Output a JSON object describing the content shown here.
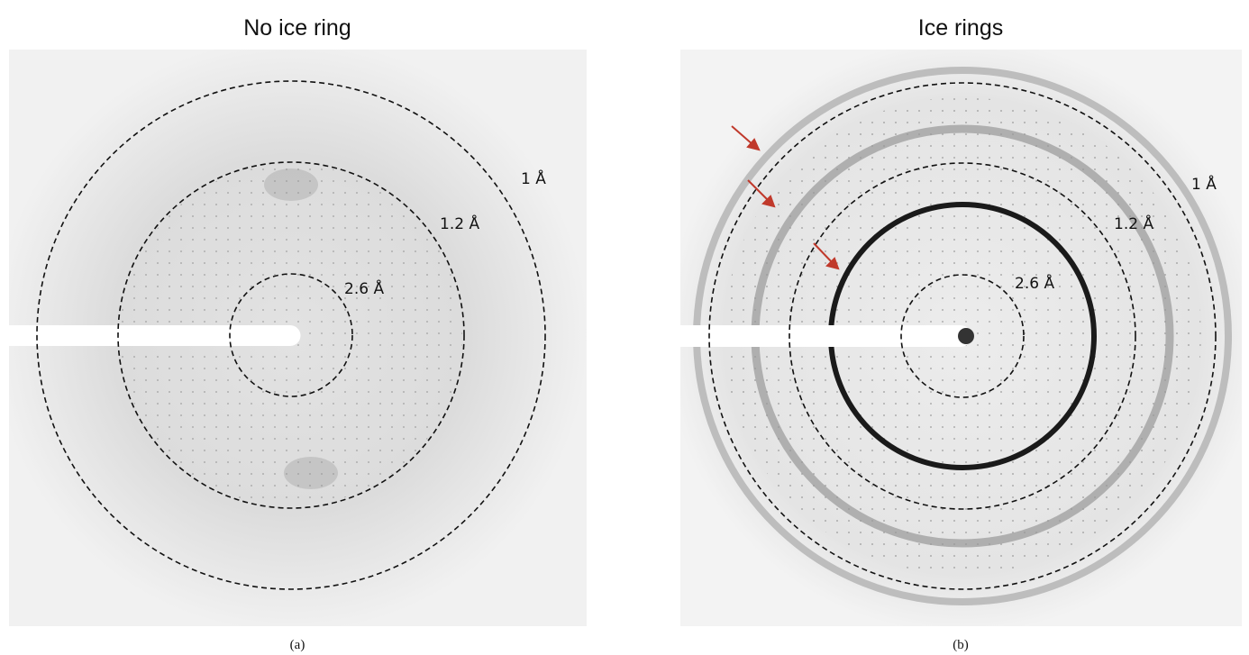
{
  "panels": [
    {
      "title": "No ice ring",
      "ring_labels": [
        "1 Å",
        "1.2 Å",
        "2.6 Å"
      ],
      "caption": "(a)"
    },
    {
      "title": "Ice rings",
      "ring_labels": [
        "1 Å",
        "1.2 Å",
        "2.6 Å"
      ],
      "caption": "(b)"
    }
  ]
}
